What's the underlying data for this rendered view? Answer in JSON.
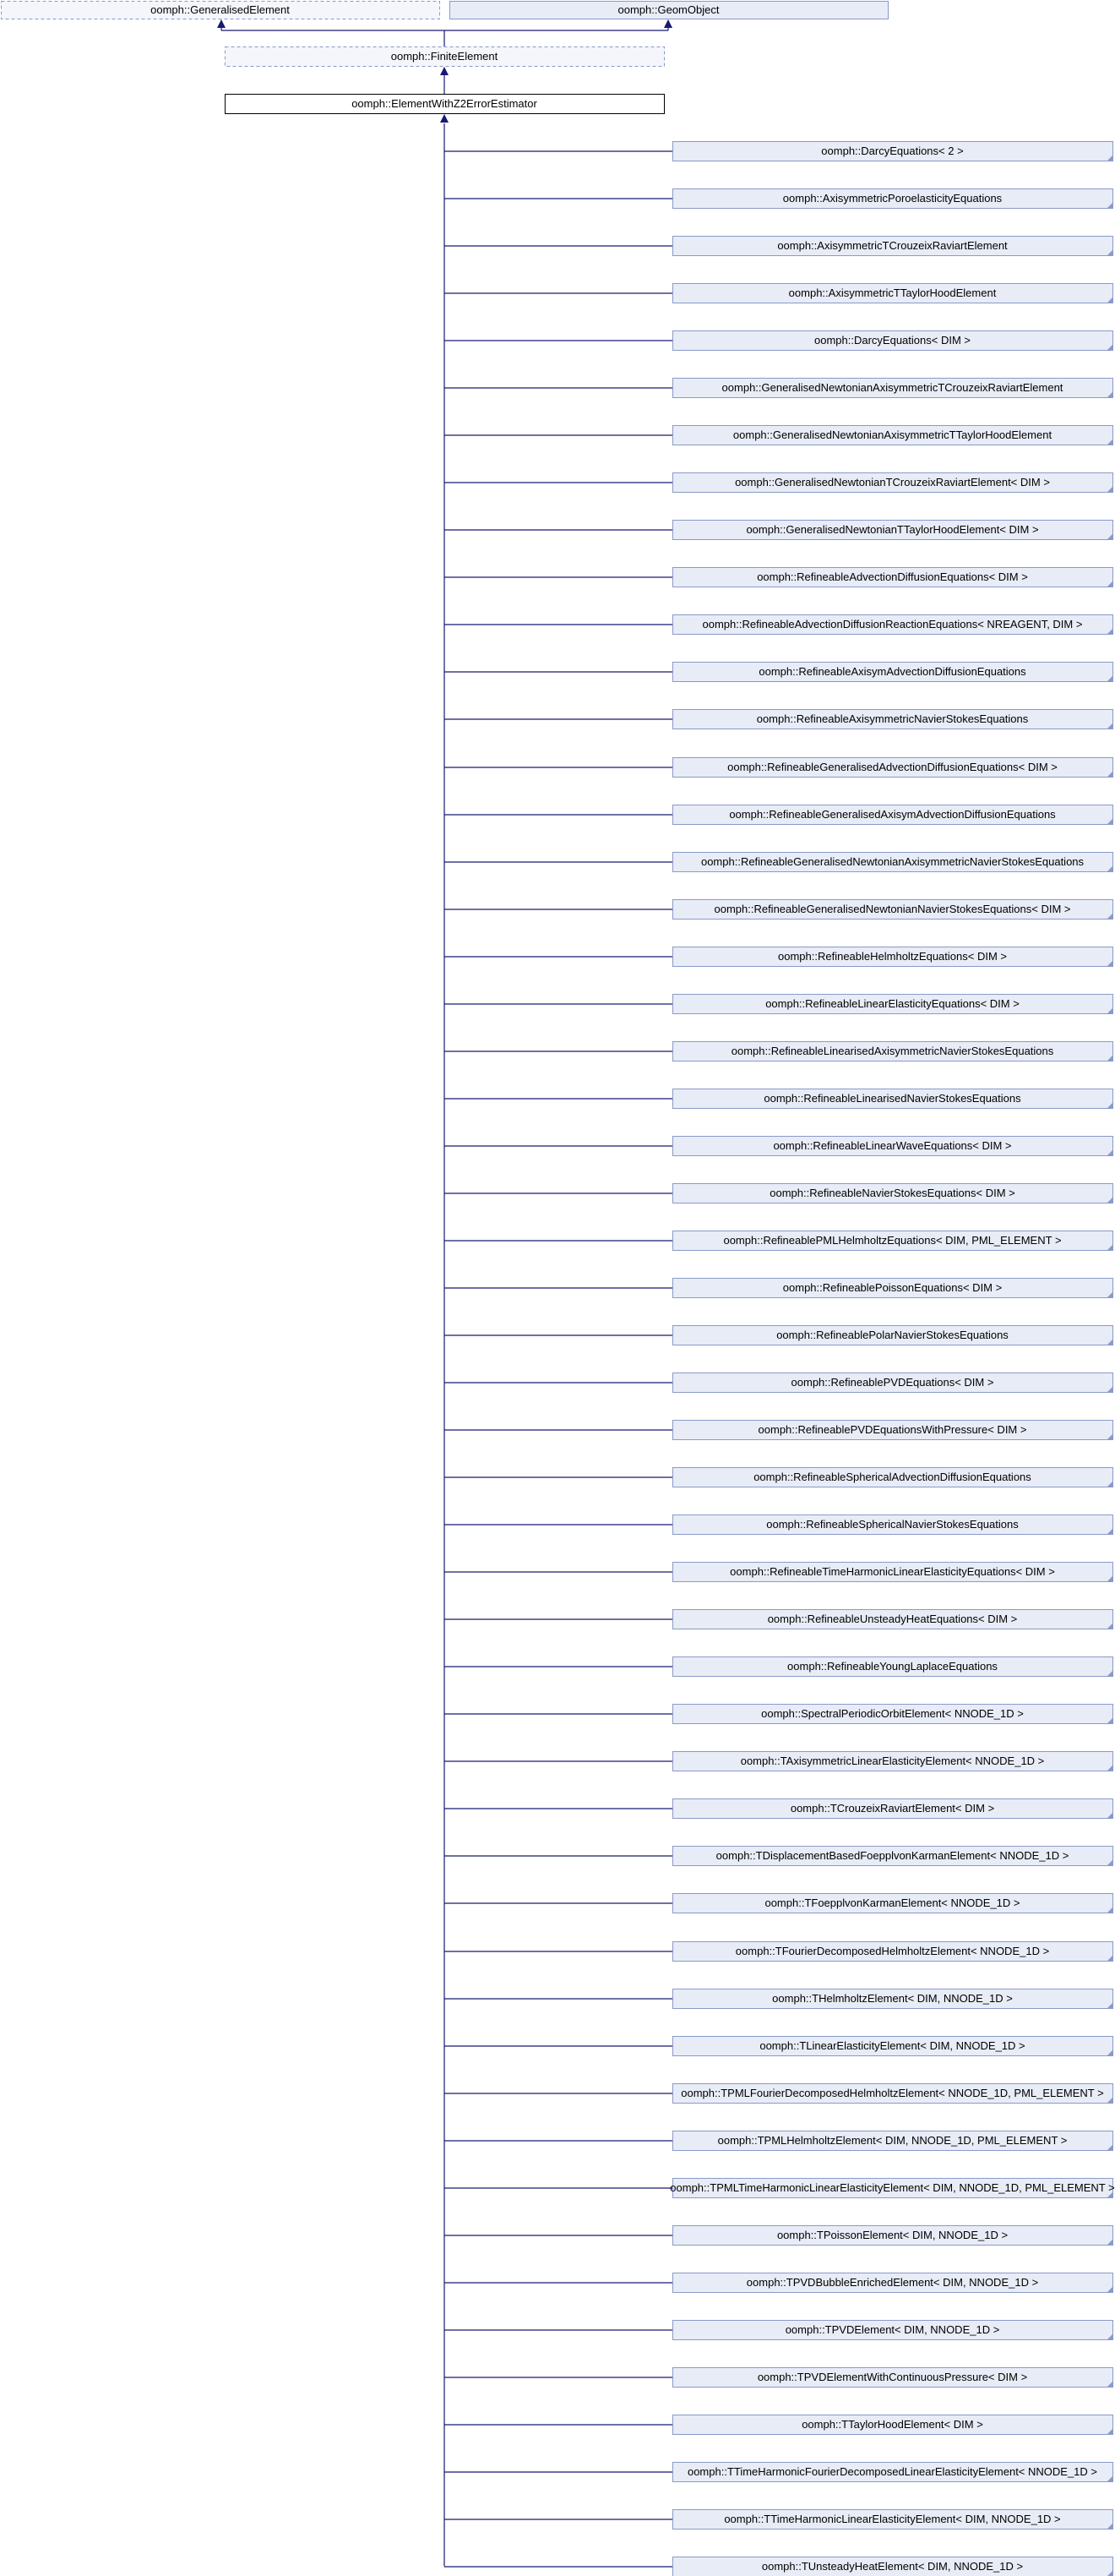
{
  "bases": [
    "oomph::GeneralisedElement",
    "oomph::GeomObject"
  ],
  "parent": "oomph::FiniteElement",
  "node": "oomph::ElementWithZ2ErrorEstimator",
  "children": [
    "oomph::DarcyEquations< 2 >",
    "oomph::AxisymmetricPoroelasticityEquations",
    "oomph::AxisymmetricTCrouzeixRaviartElement",
    "oomph::AxisymmetricTTaylorHoodElement",
    "oomph::DarcyEquations< DIM >",
    "oomph::GeneralisedNewtonianAxisymmetricTCrouzeixRaviartElement",
    "oomph::GeneralisedNewtonianAxisymmetricTTaylorHoodElement",
    "oomph::GeneralisedNewtonianTCrouzeixRaviartElement< DIM >",
    "oomph::GeneralisedNewtonianTTaylorHoodElement< DIM >",
    "oomph::RefineableAdvectionDiffusionEquations< DIM >",
    "oomph::RefineableAdvectionDiffusionReactionEquations< NREAGENT, DIM >",
    "oomph::RefineableAxisymAdvectionDiffusionEquations",
    "oomph::RefineableAxisymmetricNavierStokesEquations",
    "oomph::RefineableGeneralisedAdvectionDiffusionEquations< DIM >",
    "oomph::RefineableGeneralisedAxisymAdvectionDiffusionEquations",
    "oomph::RefineableGeneralisedNewtonianAxisymmetricNavierStokesEquations",
    "oomph::RefineableGeneralisedNewtonianNavierStokesEquations< DIM >",
    "oomph::RefineableHelmholtzEquations< DIM >",
    "oomph::RefineableLinearElasticityEquations< DIM >",
    "oomph::RefineableLinearisedAxisymmetricNavierStokesEquations",
    "oomph::RefineableLinearisedNavierStokesEquations",
    "oomph::RefineableLinearWaveEquations< DIM >",
    "oomph::RefineableNavierStokesEquations< DIM >",
    "oomph::RefineablePMLHelmholtzEquations< DIM, PML_ELEMENT >",
    "oomph::RefineablePoissonEquations< DIM >",
    "oomph::RefineablePolarNavierStokesEquations",
    "oomph::RefineablePVDEquations< DIM >",
    "oomph::RefineablePVDEquationsWithPressure< DIM >",
    "oomph::RefineableSphericalAdvectionDiffusionEquations",
    "oomph::RefineableSphericalNavierStokesEquations",
    "oomph::RefineableTimeHarmonicLinearElasticityEquations< DIM >",
    "oomph::RefineableUnsteadyHeatEquations< DIM >",
    "oomph::RefineableYoungLaplaceEquations",
    "oomph::SpectralPeriodicOrbitElement< NNODE_1D >",
    "oomph::TAxisymmetricLinearElasticityElement< NNODE_1D >",
    "oomph::TCrouzeixRaviartElement< DIM >",
    "oomph::TDisplacementBasedFoepplvonKarmanElement< NNODE_1D >",
    "oomph::TFoepplvonKarmanElement< NNODE_1D >",
    "oomph::TFourierDecomposedHelmholtzElement< NNODE_1D >",
    "oomph::THelmholtzElement< DIM, NNODE_1D >",
    "oomph::TLinearElasticityElement< DIM, NNODE_1D >",
    "oomph::TPMLFourierDecomposedHelmholtzElement< NNODE_1D, PML_ELEMENT >",
    "oomph::TPMLHelmholtzElement< DIM, NNODE_1D, PML_ELEMENT >",
    "oomph::TPMLTimeHarmonicLinearElasticityElement< DIM, NNODE_1D, PML_ELEMENT >",
    "oomph::TPoissonElement< DIM, NNODE_1D >",
    "oomph::TPVDBubbleEnrichedElement< DIM, NNODE_1D >",
    "oomph::TPVDElement< DIM, NNODE_1D >",
    "oomph::TPVDElementWithContinuousPressure< DIM >",
    "oomph::TTaylorHoodElement< DIM >",
    "oomph::TTimeHarmonicFourierDecomposedLinearElasticityElement< NNODE_1D >",
    "oomph::TTimeHarmonicLinearElasticityElement< DIM, NNODE_1D >",
    "oomph::TUnsteadyHeatElement< DIM, NNODE_1D >"
  ]
}
